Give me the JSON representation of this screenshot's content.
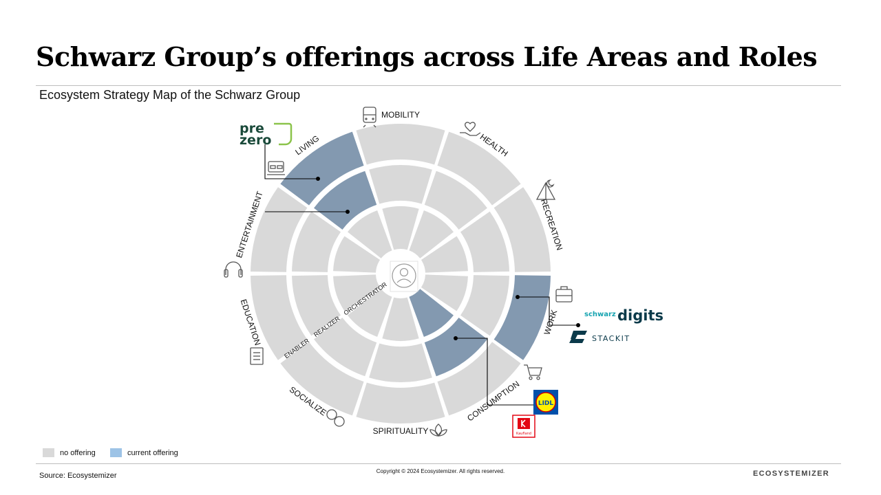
{
  "title": "Schwarz Group’s offerings across Life Areas and Roles",
  "subtitle": "Ecosystem Strategy Map of the Schwarz Group",
  "life_areas": [
    "MOBILITY",
    "HEALTH",
    "RECREATION",
    "WORK",
    "CONSUMPTION",
    "SPIRITUALITY",
    "SOCIALIZE",
    "EDUCATION",
    "ENTERTAINMENT",
    "LIVING"
  ],
  "roles": [
    "ORCHESTRATOR",
    "REALIZER",
    "ENABLER"
  ],
  "current_offerings": [
    {
      "area": "LIVING",
      "role": "ENABLER"
    },
    {
      "area": "LIVING",
      "role": "REALIZER"
    },
    {
      "area": "WORK",
      "role": "ENABLER"
    },
    {
      "area": "CONSUMPTION",
      "role": "REALIZER"
    },
    {
      "area": "CONSUMPTION",
      "role": "ORCHESTRATOR"
    }
  ],
  "brands": {
    "prezero_line1": "pre",
    "prezero_line2": "zero",
    "schwarz": "schwarz",
    "digits": "digits",
    "stackit": "STACKIT",
    "lidl": "LIDL",
    "kaufland": "Kaufland"
  },
  "legend": {
    "no_offering": "no offering",
    "current_offering": "current offering"
  },
  "colors": {
    "no_offering": "#d9d9d9",
    "current_offering": "#8399b0",
    "legend_current": "#9dc3e6"
  },
  "source": "Source: Ecosystemizer",
  "copyright": "Copyright © 2024 Ecosystemizer. All rights reserved.",
  "brand": "ECOSYSTEMIZER",
  "icons": [
    "train-icon",
    "hand-heart-icon",
    "tent-icon",
    "briefcase-icon",
    "cart-icon",
    "lotus-icon",
    "chat-bubbles-icon",
    "book-icon",
    "headphones-icon",
    "bed-icon",
    "user-icon"
  ]
}
